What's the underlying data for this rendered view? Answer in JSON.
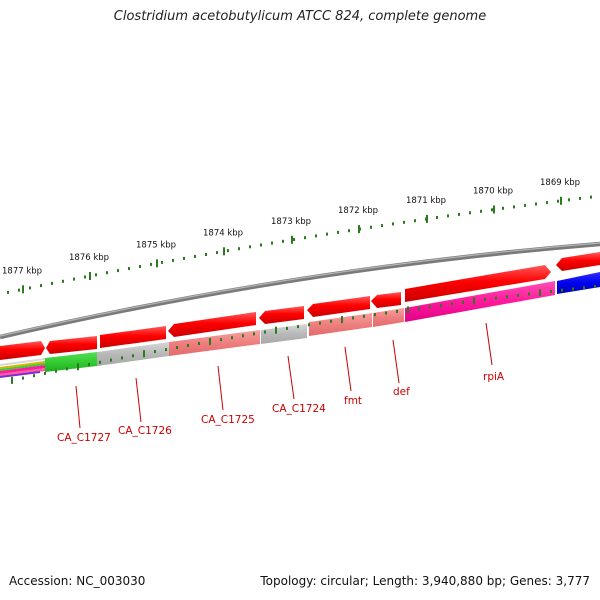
{
  "title": "Clostridium acetobutylicum ATCC 824, complete genome",
  "footer": {
    "accession": "Accession: NC_003030",
    "summary": "Topology: circular; Length: 3,940,880 bp; Genes: 3,777"
  },
  "scale_labels": [
    "1877 kbp",
    "1876 kbp",
    "1875 kbp",
    "1874 kbp",
    "1873 kbp",
    "1872 kbp",
    "1871 kbp",
    "1870 kbp",
    "1869 kbp"
  ],
  "gene_labels": [
    "CA_C1727",
    "CA_C1726",
    "CA_C1725",
    "CA_C1724",
    "fmt",
    "def",
    "rpiA"
  ],
  "colors": {
    "scale": "#2a7a1e",
    "strand_outer": "#ff0000",
    "backbone": "#808080",
    "label": "#cc0000",
    "green": "#33cc33",
    "grey": "#bdbdbd",
    "pink": "#f07a7a",
    "magenta": "#ff1a9c",
    "blue": "#0000ee"
  }
}
